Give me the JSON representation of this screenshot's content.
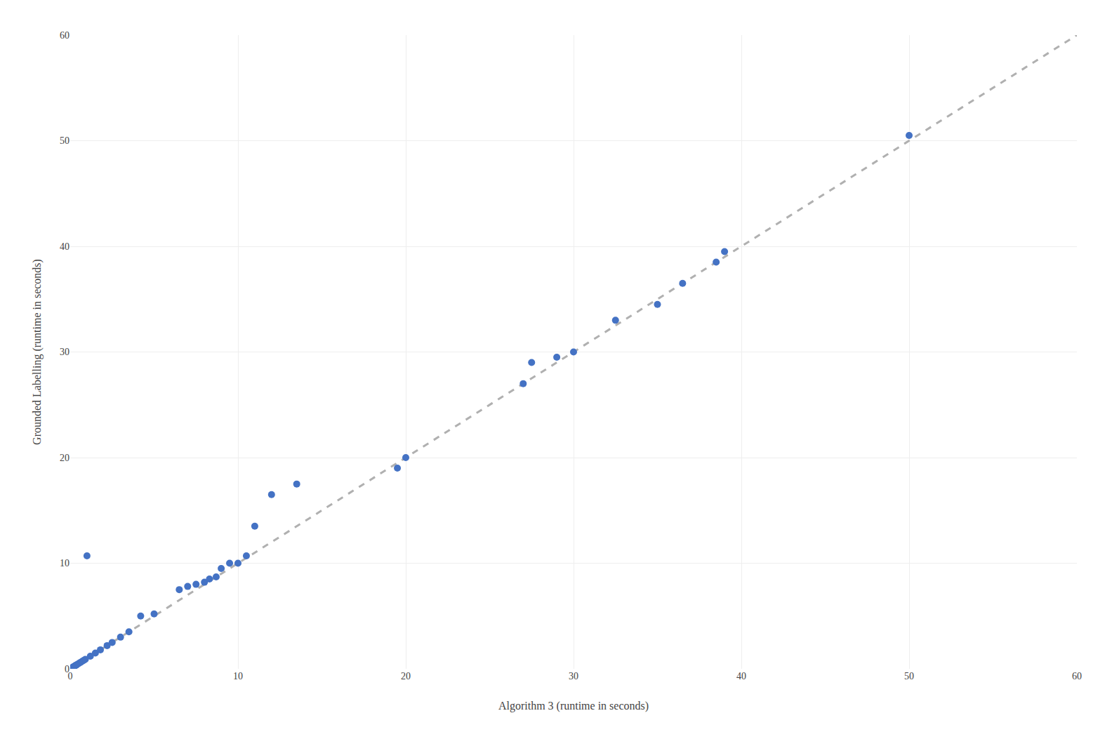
{
  "chart_data": {
    "type": "scatter",
    "xlabel": "Algorithm 3 (runtime in seconds)",
    "ylabel": "Grounded Labelling (runtime in seconds)",
    "series": [
      {
        "type": "line",
        "line_style": "dashed",
        "color": "#B0B0B0",
        "x": [
          0,
          60
        ],
        "values": [
          0,
          60
        ]
      },
      {
        "type": "scatter",
        "marker": "circle",
        "color": "#4472C4",
        "x": [
          0.05,
          0.1,
          0.15,
          0.2,
          0.25,
          0.3,
          0.35,
          0.4,
          0.5,
          0.6,
          0.7,
          0.8,
          0.9,
          1.0,
          1.2,
          1.5,
          1.8,
          2.2,
          2.5,
          3.0,
          3.5,
          4.2,
          5.0,
          6.5,
          7.0,
          7.5,
          8.0,
          8.3,
          8.7,
          9.0,
          9.5,
          10.0,
          10.5,
          11.0,
          12.0,
          13.5,
          19.5,
          20.0,
          27.0,
          27.5,
          29.0,
          30.0,
          32.5,
          35.0,
          36.5,
          38.5,
          39.0,
          50.0
        ],
        "values": [
          0.05,
          0.1,
          0.15,
          0.2,
          0.25,
          0.3,
          0.35,
          0.4,
          0.5,
          0.6,
          0.7,
          0.8,
          0.9,
          10.7,
          1.2,
          1.5,
          1.8,
          2.2,
          2.5,
          3.0,
          3.5,
          5.0,
          5.2,
          7.5,
          7.8,
          8.0,
          8.2,
          8.5,
          8.7,
          9.5,
          10.0,
          10.0,
          10.7,
          13.5,
          16.5,
          17.5,
          19.0,
          20.0,
          27.0,
          29.0,
          29.5,
          30.0,
          33.0,
          34.5,
          36.5,
          38.5,
          39.5,
          50.5
        ]
      }
    ],
    "xlim": [
      0,
      60
    ],
    "ylim": [
      0,
      60
    ],
    "xticks": [
      0,
      10,
      20,
      30,
      40,
      50,
      60
    ],
    "yticks": [
      0,
      10,
      20,
      30,
      40,
      50,
      60
    ],
    "grid": true
  }
}
